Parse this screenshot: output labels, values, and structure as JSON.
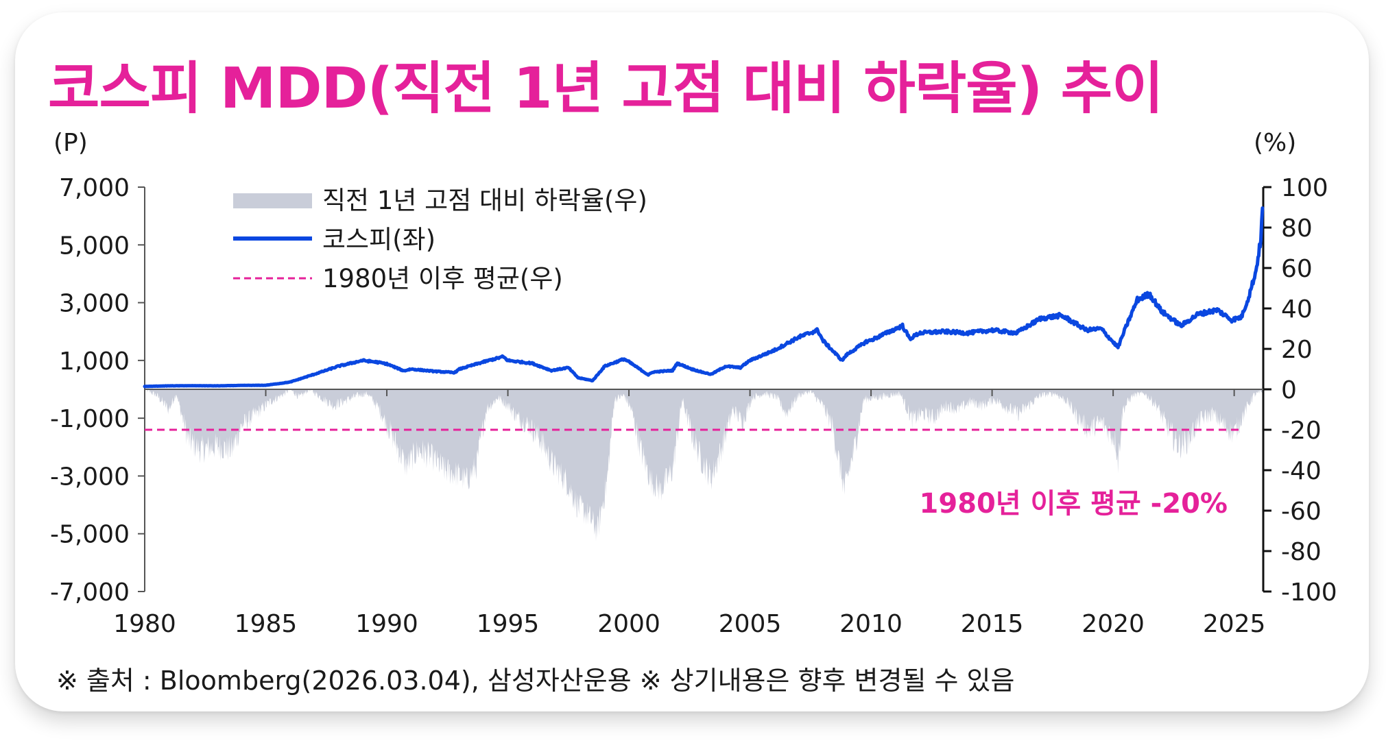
{
  "title": "코스피 MDD(직전 1년 고점 대비 하락율) 추이",
  "footer": "※ 출처 : Bloomberg(2026.03.04), 삼성자산운용 ※ 상기내용은 향후 변경될 수 있음",
  "colors": {
    "title": "#e5219a",
    "kospi_line": "#0a47e0",
    "drawdown_area": "#c9cdd9",
    "avg_line": "#e5219a"
  },
  "chart_data": {
    "type": "line",
    "left_axis_unit": "(P)",
    "right_axis_unit": "(%)",
    "left_ylim": [
      -7000,
      7000
    ],
    "right_ylim": [
      -100,
      100
    ],
    "left_ticks": [
      "7,000",
      "5,000",
      "3,000",
      "1,000",
      "-1,000",
      "-3,000",
      "-5,000",
      "-7,000"
    ],
    "right_ticks": [
      "100",
      "80",
      "60",
      "40",
      "20",
      "0",
      "-20",
      "-40",
      "-60",
      "-80",
      "-100"
    ],
    "x_ticks": [
      "1980",
      "1985",
      "1990",
      "1995",
      "2000",
      "2005",
      "2010",
      "2015",
      "2020",
      "2025"
    ],
    "xlim": [
      1980,
      2026.2
    ],
    "legend": [
      {
        "label": "직전 1년 고점 대비 하락율(우)",
        "style": "area"
      },
      {
        "label": "코스피(좌)",
        "style": "line"
      },
      {
        "label": "1980년 이후 평균(우)",
        "style": "dashed"
      }
    ],
    "annotation": "1980년 이후 평균 -20%",
    "average_pct": -20,
    "series": [
      {
        "name": "코스피(좌)",
        "axis": "left",
        "points": [
          [
            1980,
            100
          ],
          [
            1981,
            120
          ],
          [
            1982,
            125
          ],
          [
            1983,
            120
          ],
          [
            1984,
            135
          ],
          [
            1985,
            140
          ],
          [
            1986,
            250
          ],
          [
            1987,
            520
          ],
          [
            1988,
            800
          ],
          [
            1989,
            1000
          ],
          [
            1989.6,
            940
          ],
          [
            1990,
            880
          ],
          [
            1990.7,
            640
          ],
          [
            1991,
            700
          ],
          [
            1992,
            620
          ],
          [
            1992.8,
            580
          ],
          [
            1993,
            700
          ],
          [
            1994,
            950
          ],
          [
            1994.8,
            1130
          ],
          [
            1995,
            1000
          ],
          [
            1996,
            900
          ],
          [
            1996.8,
            650
          ],
          [
            1997,
            680
          ],
          [
            1997.5,
            750
          ],
          [
            1997.9,
            400
          ],
          [
            1998.5,
            300
          ],
          [
            1999,
            800
          ],
          [
            1999.8,
            1050
          ],
          [
            2000,
            950
          ],
          [
            2000.8,
            500
          ],
          [
            2001,
            600
          ],
          [
            2001.8,
            650
          ],
          [
            2002,
            900
          ],
          [
            2002.6,
            700
          ],
          [
            2003,
            600
          ],
          [
            2003.4,
            520
          ],
          [
            2004,
            800
          ],
          [
            2004.6,
            750
          ],
          [
            2005,
            1000
          ],
          [
            2006,
            1350
          ],
          [
            2007,
            1800
          ],
          [
            2007.8,
            2050
          ],
          [
            2008,
            1700
          ],
          [
            2008.8,
            1000
          ],
          [
            2009,
            1200
          ],
          [
            2009.8,
            1650
          ],
          [
            2010,
            1700
          ],
          [
            2010.9,
            2050
          ],
          [
            2011.3,
            2200
          ],
          [
            2011.6,
            1750
          ],
          [
            2012,
            1950
          ],
          [
            2013,
            2000
          ],
          [
            2014,
            1950
          ],
          [
            2015,
            2050
          ],
          [
            2016,
            1950
          ],
          [
            2017,
            2450
          ],
          [
            2017.8,
            2550
          ],
          [
            2018,
            2500
          ],
          [
            2018.9,
            2050
          ],
          [
            2019.5,
            2100
          ],
          [
            2020.2,
            1450
          ],
          [
            2020.5,
            2100
          ],
          [
            2021,
            3100
          ],
          [
            2021.5,
            3300
          ],
          [
            2022,
            2700
          ],
          [
            2022.8,
            2200
          ],
          [
            2023.5,
            2600
          ],
          [
            2024.3,
            2750
          ],
          [
            2024.9,
            2400
          ],
          [
            2025.3,
            2500
          ],
          [
            2025.6,
            3200
          ],
          [
            2025.9,
            4100
          ],
          [
            2026.1,
            5200
          ],
          [
            2026.17,
            6250
          ]
        ]
      },
      {
        "name": "직전 1년 고점 대비 하락율(우)",
        "axis": "right",
        "points": [
          [
            1980,
            0
          ],
          [
            1980.5,
            -3
          ],
          [
            1981,
            -10
          ],
          [
            1981.3,
            -2
          ],
          [
            1981.8,
            -25
          ],
          [
            1982.3,
            -30
          ],
          [
            1983,
            -28
          ],
          [
            1983.6,
            -30
          ],
          [
            1984,
            -18
          ],
          [
            1984.6,
            -12
          ],
          [
            1985.2,
            -6
          ],
          [
            1985.8,
            -2
          ],
          [
            1986,
            0
          ],
          [
            1986.4,
            -4
          ],
          [
            1986.8,
            0
          ],
          [
            1987.4,
            -5
          ],
          [
            1987.8,
            -8
          ],
          [
            1988.4,
            -5
          ],
          [
            1988.8,
            -3
          ],
          [
            1989.2,
            -2
          ],
          [
            1989.7,
            -10
          ],
          [
            1990.3,
            -25
          ],
          [
            1990.8,
            -38
          ],
          [
            1991.3,
            -30
          ],
          [
            1991.9,
            -34
          ],
          [
            1992.4,
            -40
          ],
          [
            1992.9,
            -42
          ],
          [
            1993.3,
            -45
          ],
          [
            1993.7,
            -38
          ],
          [
            1994.1,
            -10
          ],
          [
            1994.6,
            -4
          ],
          [
            1995,
            -8
          ],
          [
            1995.4,
            -14
          ],
          [
            1995.9,
            -18
          ],
          [
            1996.4,
            -26
          ],
          [
            1996.9,
            -38
          ],
          [
            1997.4,
            -45
          ],
          [
            1997.9,
            -58
          ],
          [
            1998.3,
            -62
          ],
          [
            1998.7,
            -70
          ],
          [
            1999.1,
            -45
          ],
          [
            1999.4,
            -5
          ],
          [
            1999.8,
            -3
          ],
          [
            2000.1,
            -10
          ],
          [
            2000.5,
            -30
          ],
          [
            2000.9,
            -45
          ],
          [
            2001.3,
            -50
          ],
          [
            2001.8,
            -40
          ],
          [
            2002.2,
            -5
          ],
          [
            2002.6,
            -22
          ],
          [
            2003,
            -35
          ],
          [
            2003.4,
            -44
          ],
          [
            2003.8,
            -30
          ],
          [
            2004.3,
            -10
          ],
          [
            2004.7,
            -16
          ],
          [
            2005.1,
            -4
          ],
          [
            2005.6,
            -2
          ],
          [
            2006.1,
            -4
          ],
          [
            2006.5,
            -12
          ],
          [
            2007,
            -3
          ],
          [
            2007.5,
            -1
          ],
          [
            2008,
            -8
          ],
          [
            2008.4,
            -18
          ],
          [
            2008.9,
            -50
          ],
          [
            2009.3,
            -30
          ],
          [
            2009.7,
            -5
          ],
          [
            2010.2,
            -4
          ],
          [
            2010.7,
            -3
          ],
          [
            2011.2,
            -2
          ],
          [
            2011.7,
            -15
          ],
          [
            2012.1,
            -12
          ],
          [
            2012.6,
            -14
          ],
          [
            2013.1,
            -8
          ],
          [
            2013.6,
            -10
          ],
          [
            2014.1,
            -6
          ],
          [
            2014.6,
            -8
          ],
          [
            2015.1,
            -5
          ],
          [
            2015.6,
            -9
          ],
          [
            2016.1,
            -12
          ],
          [
            2016.5,
            -8
          ],
          [
            2017,
            -3
          ],
          [
            2017.6,
            -2
          ],
          [
            2018.1,
            -6
          ],
          [
            2018.6,
            -15
          ],
          [
            2019,
            -20
          ],
          [
            2019.5,
            -16
          ],
          [
            2020.1,
            -25
          ],
          [
            2020.2,
            -36
          ],
          [
            2020.4,
            -10
          ],
          [
            2020.8,
            -3
          ],
          [
            2021.3,
            -2
          ],
          [
            2021.8,
            -8
          ],
          [
            2022.2,
            -18
          ],
          [
            2022.7,
            -28
          ],
          [
            2023.1,
            -25
          ],
          [
            2023.6,
            -15
          ],
          [
            2024.1,
            -12
          ],
          [
            2024.6,
            -18
          ],
          [
            2025,
            -22
          ],
          [
            2025.4,
            -12
          ],
          [
            2025.8,
            -3
          ],
          [
            2026.17,
            -1
          ]
        ]
      }
    ]
  }
}
